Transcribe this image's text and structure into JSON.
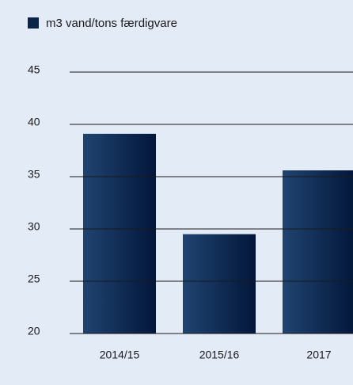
{
  "chart_data": {
    "type": "bar",
    "legend": "m3 vand/tons færdigvare",
    "categories": [
      "2014/15",
      "2015/16",
      "2017"
    ],
    "values": [
      39.1,
      29.5,
      35.6
    ],
    "color": "#0a2448",
    "ylim": [
      20,
      45
    ],
    "yticks": [
      20,
      25,
      30,
      35,
      40,
      45
    ],
    "grid": true
  }
}
